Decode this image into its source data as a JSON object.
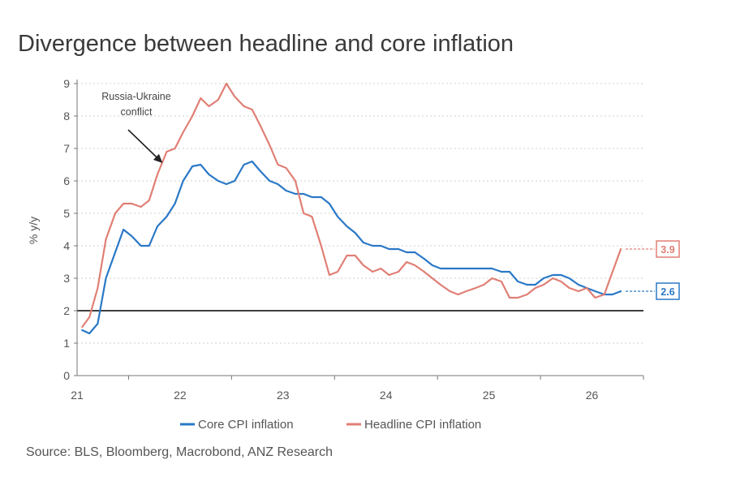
{
  "title": "Divergence between headline and core inflation",
  "source": "Source: BLS, Bloomberg, Macrobond, ANZ Research",
  "chart_data": {
    "type": "line",
    "ylabel": "% y/y",
    "ylim": [
      0,
      9
    ],
    "yticks": [
      "0",
      "1",
      "2",
      "3",
      "4",
      "5",
      "6",
      "7",
      "8",
      "9"
    ],
    "xlim": [
      20.5,
      26
    ],
    "xticks": [
      "21",
      "22",
      "23",
      "24",
      "25",
      "26"
    ],
    "reference_line": 2,
    "grid": "horizontal dotted",
    "legend_position": "bottom",
    "annotation": {
      "text": [
        "Russia-Ukraine",
        "conflict"
      ],
      "points_to": [
        21.33,
        6.55
      ]
    },
    "colors": {
      "core": "#2a78c6",
      "headline": "#e07f75",
      "reference": "#222222"
    },
    "series": [
      {
        "name": "Core CPI inflation",
        "color": "#2a78c6",
        "end_label": "2.6",
        "x": [
          20.55,
          20.62,
          20.7,
          20.78,
          20.87,
          20.95,
          21.03,
          21.12,
          21.2,
          21.28,
          21.37,
          21.45,
          21.53,
          21.62,
          21.7,
          21.78,
          21.87,
          21.95,
          22.03,
          22.12,
          22.2,
          22.28,
          22.37,
          22.45,
          22.53,
          22.62,
          22.7,
          22.78,
          22.87,
          22.95,
          23.03,
          23.12,
          23.2,
          23.28,
          23.37,
          23.45,
          23.53,
          23.62,
          23.7,
          23.78,
          23.87,
          23.95,
          24.03,
          24.12,
          24.2,
          24.28,
          24.37,
          24.45,
          24.53,
          24.62,
          24.7,
          24.78,
          24.87,
          24.95,
          25.03,
          25.12,
          25.2,
          25.28,
          25.37,
          25.45,
          25.53,
          25.62,
          25.7,
          25.78
        ],
        "values": [
          1.4,
          1.3,
          1.6,
          3.0,
          3.8,
          4.5,
          4.3,
          4.0,
          4.0,
          4.6,
          4.9,
          5.3,
          6.0,
          6.45,
          6.5,
          6.2,
          6.0,
          5.9,
          6.0,
          6.5,
          6.6,
          6.3,
          6.0,
          5.9,
          5.7,
          5.6,
          5.6,
          5.5,
          5.5,
          5.3,
          4.9,
          4.6,
          4.4,
          4.1,
          4.0,
          4.0,
          3.9,
          3.9,
          3.8,
          3.8,
          3.6,
          3.4,
          3.3,
          3.3,
          3.3,
          3.3,
          3.3,
          3.3,
          3.3,
          3.2,
          3.2,
          2.9,
          2.8,
          2.8,
          3.0,
          3.1,
          3.1,
          3.0,
          2.8,
          2.7,
          2.6,
          2.5,
          2.5,
          2.6
        ]
      },
      {
        "name": "Headline CPI inflation",
        "color": "#e07f75",
        "end_label": "3.9",
        "x": [
          20.55,
          20.62,
          20.7,
          20.78,
          20.87,
          20.95,
          21.03,
          21.12,
          21.2,
          21.28,
          21.37,
          21.45,
          21.53,
          21.62,
          21.7,
          21.78,
          21.87,
          21.95,
          22.03,
          22.12,
          22.2,
          22.28,
          22.37,
          22.45,
          22.53,
          22.62,
          22.7,
          22.78,
          22.87,
          22.95,
          23.03,
          23.12,
          23.2,
          23.28,
          23.37,
          23.45,
          23.53,
          23.62,
          23.7,
          23.78,
          23.87,
          23.95,
          24.03,
          24.12,
          24.2,
          24.28,
          24.37,
          24.45,
          24.53,
          24.62,
          24.7,
          24.78,
          24.87,
          24.95,
          25.03,
          25.12,
          25.2,
          25.28,
          25.37,
          25.45,
          25.53,
          25.62,
          25.7,
          25.78
        ],
        "values": [
          1.5,
          1.8,
          2.7,
          4.2,
          5.0,
          5.3,
          5.3,
          5.2,
          5.4,
          6.2,
          6.9,
          7.0,
          7.5,
          8.0,
          8.55,
          8.3,
          8.5,
          9.0,
          8.6,
          8.3,
          8.2,
          7.7,
          7.1,
          6.5,
          6.4,
          6.0,
          5.0,
          4.9,
          4.0,
          3.1,
          3.2,
          3.7,
          3.7,
          3.4,
          3.2,
          3.3,
          3.1,
          3.2,
          3.5,
          3.4,
          3.2,
          3.0,
          2.8,
          2.6,
          2.5,
          2.6,
          2.7,
          2.8,
          3.0,
          2.9,
          2.4,
          2.4,
          2.5,
          2.7,
          2.8,
          3.0,
          2.9,
          2.7,
          2.6,
          2.7,
          2.4,
          2.5,
          3.2,
          3.9
        ]
      }
    ]
  }
}
